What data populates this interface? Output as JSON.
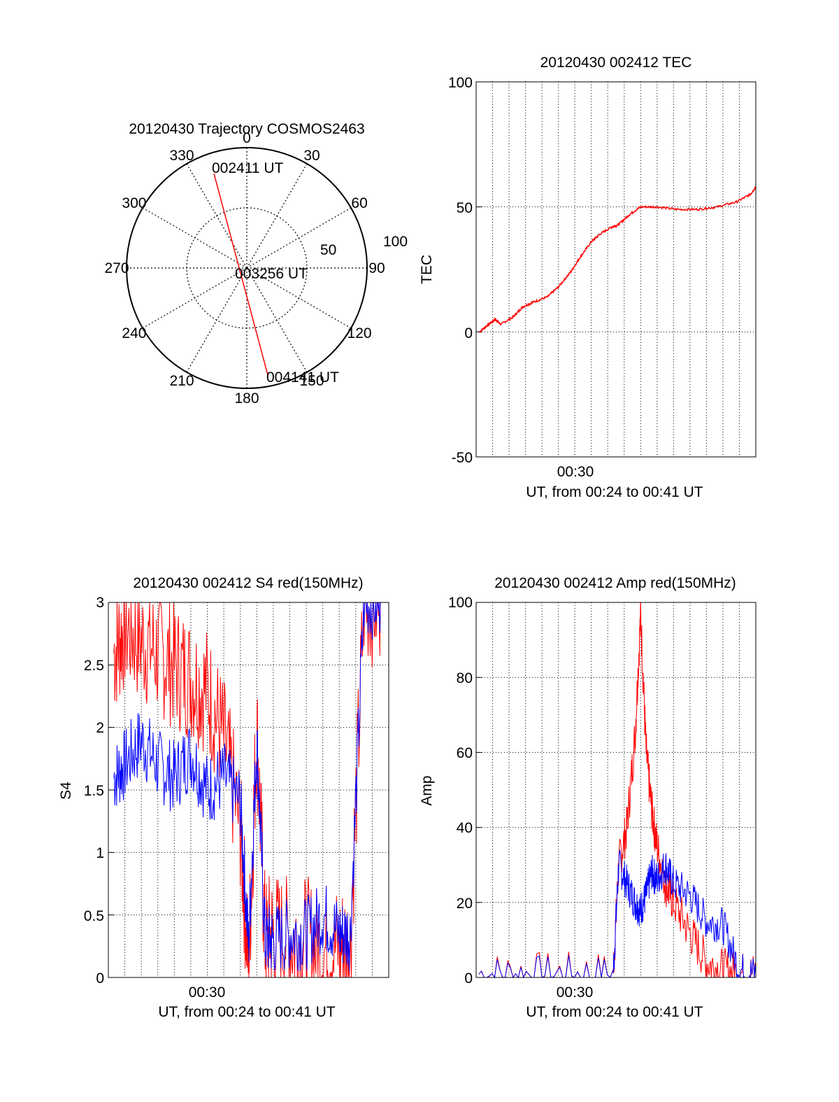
{
  "colors": {
    "red": "#ff0000",
    "blue": "#0000ff",
    "axis": "#000000"
  },
  "polar": {
    "title": "20120430 Trajectory COSMOS2463",
    "angle_labels": [
      "0",
      "30",
      "60",
      "90",
      "120",
      "150",
      "180",
      "210",
      "240",
      "270",
      "300",
      "330"
    ],
    "radius_labels": [
      "50",
      "100"
    ],
    "point_labels": [
      "002411 UT",
      "003256 UT",
      "004141 UT"
    ],
    "chart_data": {
      "type": "polar",
      "title": "20120430 Trajectory COSMOS2463",
      "radius_range": [
        0,
        100
      ],
      "track": [
        {
          "label": "002411 UT",
          "azimuth": 340,
          "radius": 85
        },
        {
          "label": "003256 UT",
          "azimuth": 0,
          "radius": 0
        },
        {
          "label": "004141 UT",
          "azimuth": 163,
          "radius": 88
        }
      ]
    }
  },
  "tec": {
    "title": "20120430 002412 TEC",
    "ylabel": "TEC",
    "xlabel": "UT, from 00:24 to 00:41 UT",
    "yticks": [
      "-50",
      "0",
      "50",
      "100"
    ],
    "xtick": "00:30",
    "chart_data": {
      "type": "line",
      "title": "20120430 002412 TEC",
      "xlabel": "UT, from 00:24 to 00:41 UT",
      "ylabel": "TEC",
      "xlim": [
        "00:24",
        "00:41"
      ],
      "ylim": [
        -50,
        100
      ],
      "series": [
        {
          "color": "#ff0000",
          "x": [
            "00:24:12",
            "00:24:45",
            "00:25:10",
            "00:25:30",
            "00:26:15",
            "00:26:50",
            "00:27:30",
            "00:28:20",
            "00:29:00",
            "00:29:45",
            "00:30:20",
            "00:31:00",
            "00:31:30",
            "00:32:15",
            "00:32:40",
            "00:33:20",
            "00:34:00",
            "00:35:00",
            "00:36:10",
            "00:37:30",
            "00:38:40",
            "00:39:50",
            "00:40:40",
            "00:41:00"
          ],
          "y": [
            0,
            3,
            5,
            3,
            6,
            10,
            12,
            14,
            18,
            24,
            30,
            36,
            39,
            42,
            43,
            47,
            50,
            50,
            49,
            49,
            50,
            52,
            55,
            58
          ]
        }
      ]
    }
  },
  "s4": {
    "title": "20120430 002412 S4 red(150MHz)",
    "ylabel": "S4",
    "xlabel": "UT, from 00:24 to 00:41 UT",
    "yticks": [
      "0",
      "0.5",
      "1",
      "1.5",
      "2",
      "2.5",
      "3"
    ],
    "xtick": "00:30",
    "chart_data": {
      "type": "line",
      "title": "20120430 002412 S4 red(150MHz)",
      "xlabel": "UT, from 00:24 to 00:41 UT",
      "ylabel": "S4",
      "xlim": [
        "00:24",
        "00:41"
      ],
      "ylim": [
        0,
        3
      ],
      "series": [
        {
          "color": "#ff0000",
          "x": [
            "00:24:20",
            "00:25:00",
            "00:26:00",
            "00:27:00",
            "00:28:00",
            "00:29:00",
            "00:30:00",
            "00:31:00",
            "00:32:00",
            "00:32:30",
            "00:33:00",
            "00:33:30",
            "00:34:00",
            "00:35:00",
            "00:36:00",
            "00:37:00",
            "00:38:00",
            "00:38:40",
            "00:39:30",
            "00:40:30"
          ],
          "y": [
            2.6,
            2.8,
            2.7,
            2.6,
            2.5,
            2.4,
            2.3,
            1.9,
            1.2,
            0.1,
            2.0,
            0.3,
            0.35,
            0.3,
            0.3,
            0.2,
            0.25,
            0.25,
            3.0,
            3.0
          ]
        },
        {
          "color": "#0000ff",
          "x": [
            "00:24:20",
            "00:25:00",
            "00:26:00",
            "00:27:00",
            "00:28:00",
            "00:29:00",
            "00:30:00",
            "00:31:00",
            "00:32:00",
            "00:32:30",
            "00:33:00",
            "00:33:30",
            "00:34:00",
            "00:35:00",
            "00:36:00",
            "00:37:00",
            "00:38:00",
            "00:38:40",
            "00:39:30",
            "00:40:30"
          ],
          "y": [
            1.6,
            1.7,
            1.9,
            1.7,
            1.6,
            1.8,
            1.5,
            1.6,
            1.4,
            0.25,
            1.9,
            0.3,
            0.3,
            0.35,
            0.35,
            0.5,
            0.35,
            0.35,
            3.0,
            3.0
          ]
        }
      ]
    }
  },
  "amp": {
    "title": "20120430 002412 Amp red(150MHz)",
    "ylabel": "Amp",
    "xlabel": "UT, from 00:24 to 00:41 UT",
    "yticks": [
      "0",
      "20",
      "40",
      "60",
      "80",
      "100"
    ],
    "xtick": "00:30",
    "chart_data": {
      "type": "line",
      "title": "20120430 002412 Amp red(150MHz)",
      "xlabel": "UT, from 00:24 to 00:41 UT",
      "ylabel": "Amp",
      "xlim": [
        "00:24",
        "00:41"
      ],
      "ylim": [
        0,
        100
      ],
      "series": [
        {
          "color": "#ff0000",
          "x": [
            "00:24:10",
            "00:28:00",
            "00:32:20",
            "00:32:40",
            "00:33:10",
            "00:33:40",
            "00:34:00",
            "00:34:20",
            "00:34:40",
            "00:35:00",
            "00:35:30",
            "00:36:00",
            "00:37:00",
            "00:38:00",
            "00:39:00",
            "00:40:00",
            "00:41:00"
          ],
          "y": [
            1,
            1,
            1,
            30,
            40,
            65,
            97,
            60,
            45,
            35,
            25,
            20,
            12,
            4,
            2,
            1,
            1
          ]
        },
        {
          "color": "#0000ff",
          "x": [
            "00:24:10",
            "00:28:00",
            "00:32:20",
            "00:32:40",
            "00:33:10",
            "00:33:40",
            "00:34:00",
            "00:34:20",
            "00:34:40",
            "00:35:00",
            "00:35:30",
            "00:36:00",
            "00:37:00",
            "00:38:00",
            "00:39:00",
            "00:40:00",
            "00:41:00"
          ],
          "y": [
            1,
            1,
            1,
            30,
            25,
            20,
            18,
            22,
            28,
            26,
            30,
            25,
            22,
            15,
            14,
            2,
            1
          ]
        }
      ]
    }
  }
}
